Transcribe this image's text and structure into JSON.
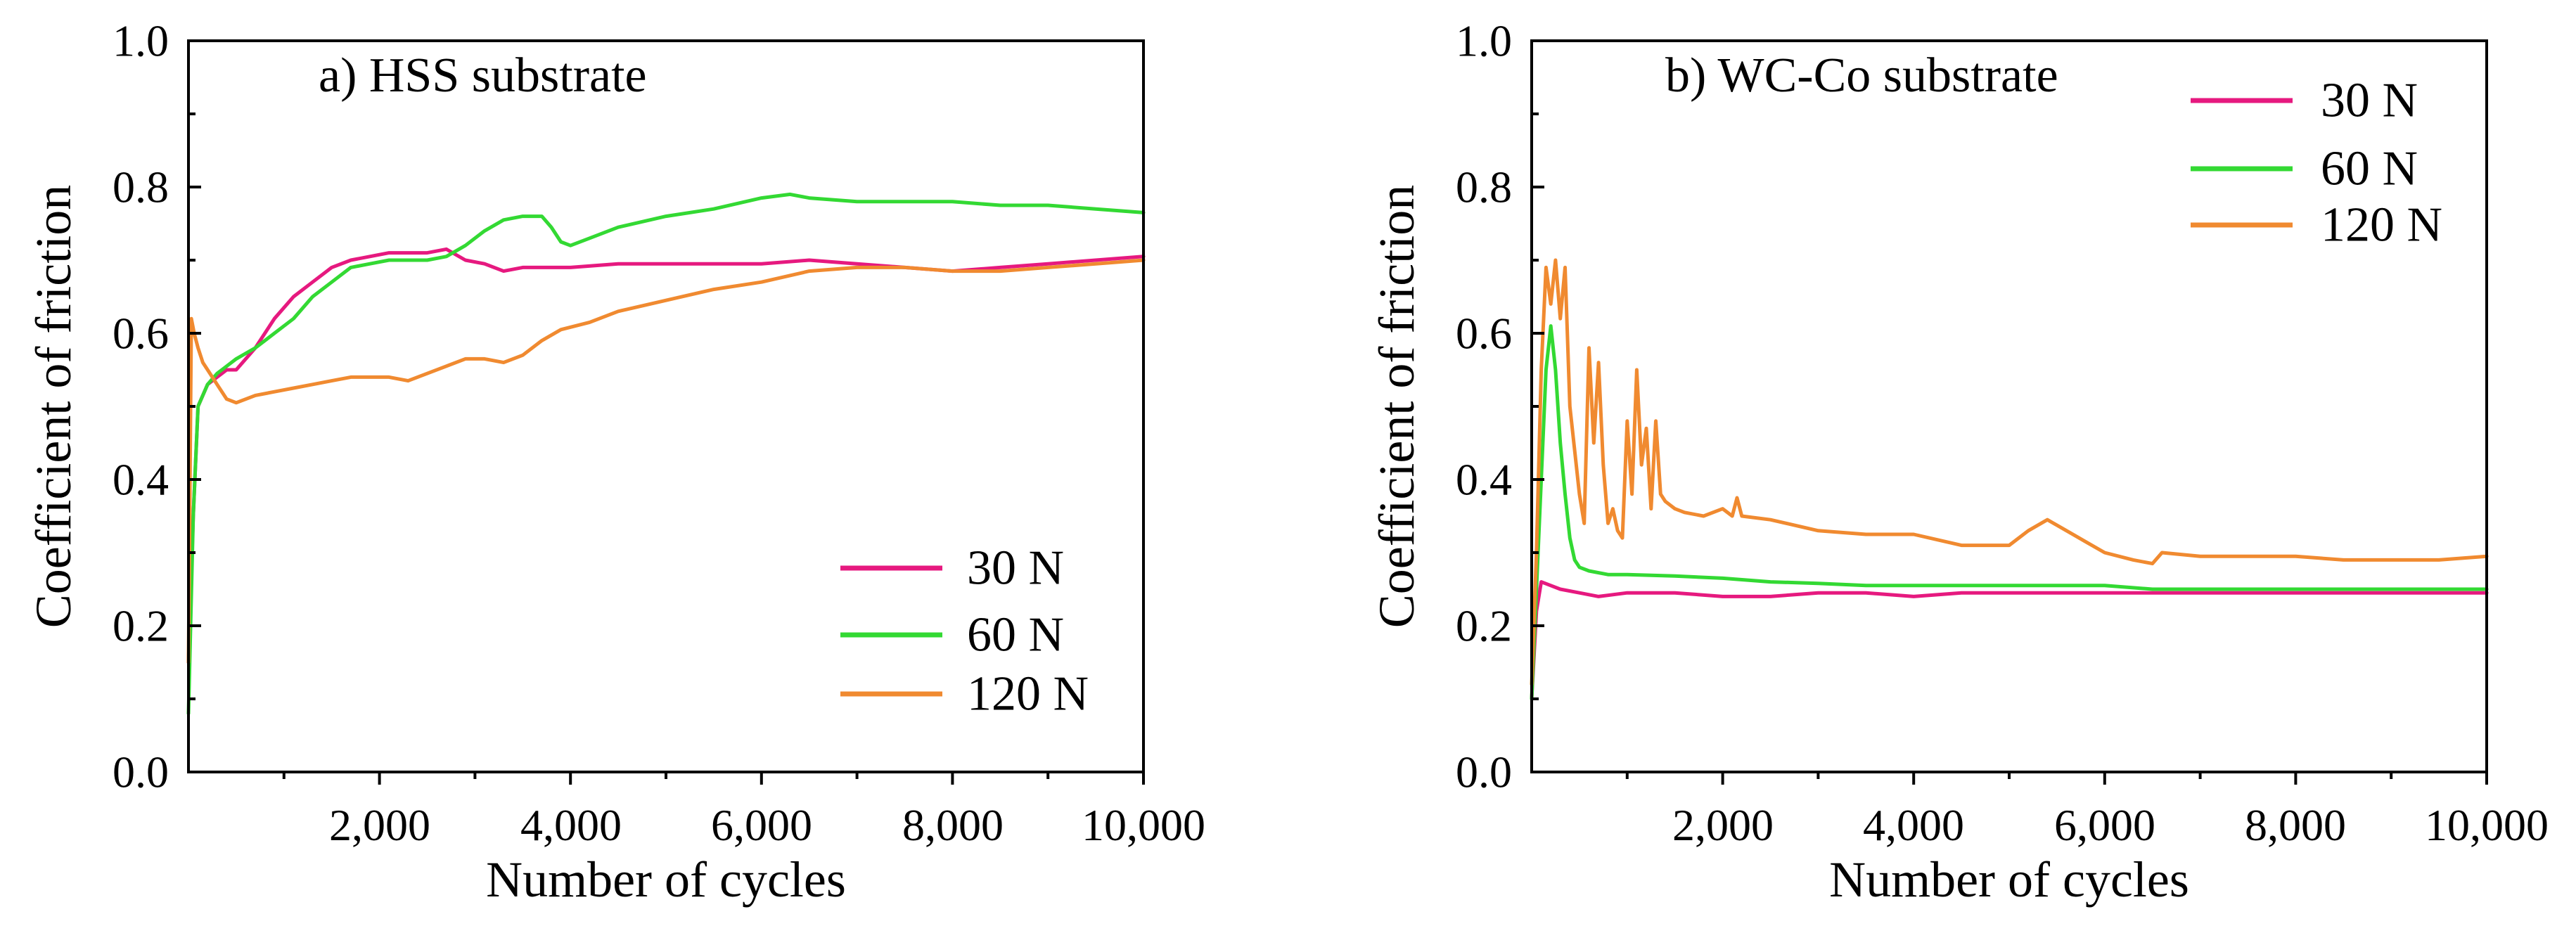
{
  "chart_data": [
    {
      "type": "line",
      "title": "a) HSS substrate",
      "xlabel": "Number of cycles",
      "ylabel": "Coefficient of friction",
      "xlim": [
        0,
        10000
      ],
      "ylim": [
        0,
        1.0
      ],
      "xticks": [
        2000,
        4000,
        6000,
        8000,
        10000
      ],
      "xtick_labels": [
        "2,000",
        "4,000",
        "6,000",
        "8,000",
        "10,000"
      ],
      "yticks": [
        0,
        0.2,
        0.4,
        0.6,
        0.8,
        1.0
      ],
      "ytick_labels": [
        "0.0",
        "0.2",
        "0.4",
        "0.6",
        "0.8",
        "1.0"
      ],
      "grid": false,
      "legend_position": "bottom-right",
      "series": [
        {
          "name": "30 N",
          "color": "#e6197f",
          "x": [
            0,
            50,
            100,
            200,
            300,
            400,
            500,
            700,
            900,
            1100,
            1300,
            1500,
            1700,
            1900,
            2100,
            2300,
            2500,
            2700,
            2900,
            3100,
            3300,
            3500,
            3700,
            4000,
            4500,
            5000,
            5500,
            6000,
            6500,
            7000,
            7500,
            8000,
            8500,
            9000,
            9500,
            10000
          ],
          "y": [
            0.15,
            0.35,
            0.5,
            0.53,
            0.54,
            0.55,
            0.55,
            0.58,
            0.62,
            0.65,
            0.67,
            0.69,
            0.7,
            0.705,
            0.71,
            0.71,
            0.71,
            0.715,
            0.7,
            0.695,
            0.685,
            0.69,
            0.69,
            0.69,
            0.695,
            0.695,
            0.695,
            0.695,
            0.7,
            0.695,
            0.69,
            0.685,
            0.69,
            0.695,
            0.7,
            0.705
          ]
        },
        {
          "name": "60 N",
          "color": "#33d933",
          "x": [
            0,
            50,
            100,
            200,
            300,
            400,
            500,
            700,
            900,
            1100,
            1300,
            1500,
            1700,
            1900,
            2100,
            2300,
            2500,
            2700,
            2900,
            3100,
            3300,
            3500,
            3700,
            3800,
            3900,
            4000,
            4200,
            4500,
            5000,
            5500,
            6000,
            6300,
            6500,
            7000,
            7500,
            8000,
            8500,
            9000,
            9500,
            10000
          ],
          "y": [
            0.08,
            0.35,
            0.5,
            0.53,
            0.545,
            0.555,
            0.565,
            0.58,
            0.6,
            0.62,
            0.65,
            0.67,
            0.69,
            0.695,
            0.7,
            0.7,
            0.7,
            0.705,
            0.72,
            0.74,
            0.755,
            0.76,
            0.76,
            0.745,
            0.725,
            0.72,
            0.73,
            0.745,
            0.76,
            0.77,
            0.785,
            0.79,
            0.785,
            0.78,
            0.78,
            0.78,
            0.775,
            0.775,
            0.77,
            0.765
          ]
        },
        {
          "name": "120 N",
          "color": "#f08a30",
          "x": [
            0,
            30,
            60,
            100,
            150,
            200,
            300,
            400,
            500,
            700,
            900,
            1100,
            1300,
            1500,
            1700,
            1900,
            2100,
            2300,
            2500,
            2700,
            2900,
            3100,
            3300,
            3500,
            3700,
            3900,
            4200,
            4500,
            5000,
            5500,
            6000,
            6500,
            7000,
            7500,
            8000,
            8500,
            9000,
            9500,
            10000
          ],
          "y": [
            0.15,
            0.62,
            0.6,
            0.58,
            0.56,
            0.55,
            0.53,
            0.51,
            0.505,
            0.515,
            0.52,
            0.525,
            0.53,
            0.535,
            0.54,
            0.54,
            0.54,
            0.535,
            0.545,
            0.555,
            0.565,
            0.565,
            0.56,
            0.57,
            0.59,
            0.605,
            0.615,
            0.63,
            0.645,
            0.66,
            0.67,
            0.685,
            0.69,
            0.69,
            0.685,
            0.685,
            0.69,
            0.695,
            0.7
          ]
        }
      ]
    },
    {
      "type": "line",
      "title": "b) WC-Co substrate",
      "xlabel": "Number of cycles",
      "ylabel": "Coefficient of friction",
      "xlim": [
        0,
        10000
      ],
      "ylim": [
        0,
        1.0
      ],
      "xticks": [
        2000,
        4000,
        6000,
        8000,
        10000
      ],
      "xtick_labels": [
        "2,000",
        "4,000",
        "6,000",
        "8,000",
        "10,000"
      ],
      "yticks": [
        0,
        0.2,
        0.4,
        0.6,
        0.8,
        1.0
      ],
      "ytick_labels": [
        "0.0",
        "0.2",
        "0.4",
        "0.6",
        "0.8",
        "1.0"
      ],
      "grid": false,
      "legend_position": "top-right",
      "series": [
        {
          "name": "30 N",
          "color": "#e6197f",
          "x": [
            0,
            50,
            100,
            200,
            300,
            500,
            700,
            1000,
            1500,
            2000,
            2500,
            3000,
            3500,
            4000,
            4500,
            5000,
            5500,
            6000,
            6500,
            7000,
            7500,
            8000,
            8500,
            9000,
            9500,
            10000
          ],
          "y": [
            0.1,
            0.22,
            0.26,
            0.255,
            0.25,
            0.245,
            0.24,
            0.245,
            0.245,
            0.24,
            0.24,
            0.245,
            0.245,
            0.24,
            0.245,
            0.245,
            0.245,
            0.245,
            0.245,
            0.245,
            0.245,
            0.245,
            0.245,
            0.245,
            0.245,
            0.245
          ]
        },
        {
          "name": "60 N",
          "color": "#33d933",
          "x": [
            0,
            50,
            100,
            150,
            200,
            250,
            300,
            350,
            400,
            450,
            500,
            600,
            800,
            1000,
            1500,
            2000,
            2500,
            3000,
            3500,
            4000,
            4500,
            5000,
            5500,
            6000,
            6500,
            7000,
            7500,
            8000,
            8500,
            9000,
            9500,
            10000
          ],
          "y": [
            0.1,
            0.25,
            0.4,
            0.55,
            0.61,
            0.55,
            0.45,
            0.38,
            0.32,
            0.29,
            0.28,
            0.275,
            0.27,
            0.27,
            0.268,
            0.265,
            0.26,
            0.258,
            0.255,
            0.255,
            0.255,
            0.255,
            0.255,
            0.255,
            0.25,
            0.25,
            0.25,
            0.25,
            0.25,
            0.25,
            0.25,
            0.25
          ]
        },
        {
          "name": "120 N",
          "color": "#f08a30",
          "x": [
            0,
            50,
            100,
            150,
            200,
            250,
            300,
            350,
            400,
            450,
            500,
            550,
            600,
            650,
            700,
            750,
            800,
            850,
            900,
            950,
            1000,
            1050,
            1100,
            1150,
            1200,
            1250,
            1300,
            1350,
            1400,
            1500,
            1600,
            1800,
            2000,
            2100,
            2150,
            2200,
            2500,
            3000,
            3500,
            4000,
            4500,
            5000,
            5200,
            5400,
            5600,
            5800,
            6000,
            6300,
            6500,
            6600,
            7000,
            7500,
            8000,
            8500,
            9000,
            9500,
            10000
          ],
          "y": [
            0.12,
            0.3,
            0.55,
            0.69,
            0.64,
            0.7,
            0.62,
            0.69,
            0.5,
            0.44,
            0.38,
            0.34,
            0.58,
            0.45,
            0.56,
            0.42,
            0.34,
            0.36,
            0.33,
            0.32,
            0.48,
            0.38,
            0.55,
            0.42,
            0.47,
            0.36,
            0.48,
            0.38,
            0.37,
            0.36,
            0.355,
            0.35,
            0.36,
            0.35,
            0.375,
            0.35,
            0.345,
            0.33,
            0.325,
            0.325,
            0.31,
            0.31,
            0.33,
            0.345,
            0.33,
            0.315,
            0.3,
            0.29,
            0.285,
            0.3,
            0.295,
            0.295,
            0.295,
            0.29,
            0.29,
            0.29,
            0.295
          ]
        }
      ]
    }
  ]
}
